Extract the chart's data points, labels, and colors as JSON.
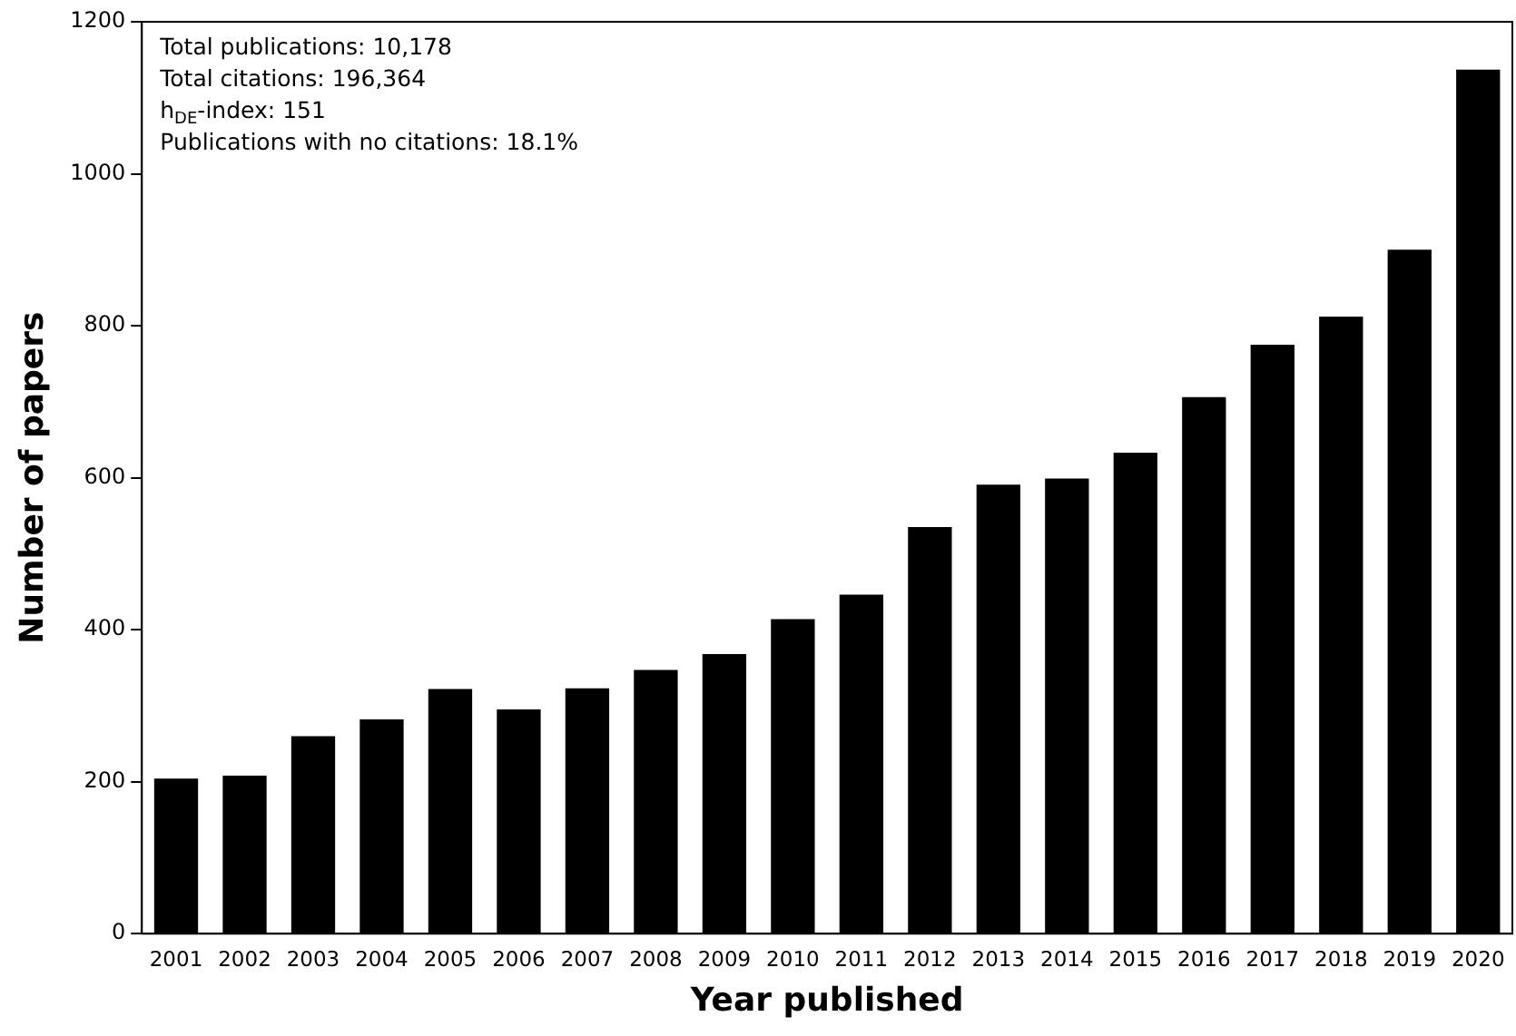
{
  "chart_data": {
    "type": "bar",
    "xlabel": "Year published",
    "ylabel": "Number of papers",
    "categories": [
      "2001",
      "2002",
      "2003",
      "2004",
      "2005",
      "2006",
      "2007",
      "2008",
      "2009",
      "2010",
      "2011",
      "2012",
      "2013",
      "2014",
      "2015",
      "2016",
      "2017",
      "2018",
      "2019",
      "2020"
    ],
    "values": [
      204,
      208,
      260,
      282,
      322,
      295,
      323,
      347,
      368,
      414,
      446,
      535,
      591,
      599,
      633,
      706,
      775,
      812,
      900,
      1137
    ],
    "color": "#000000",
    "ylim": [
      0,
      1200
    ],
    "yticks": [
      0,
      200,
      400,
      600,
      800,
      1000,
      1200
    ],
    "grid": false,
    "annotations": [
      "Total publications: 10,178",
      "Total citations: 196,364",
      "h$_{DE}$-index: 151",
      "Publications with no citations: 18.1%"
    ]
  }
}
